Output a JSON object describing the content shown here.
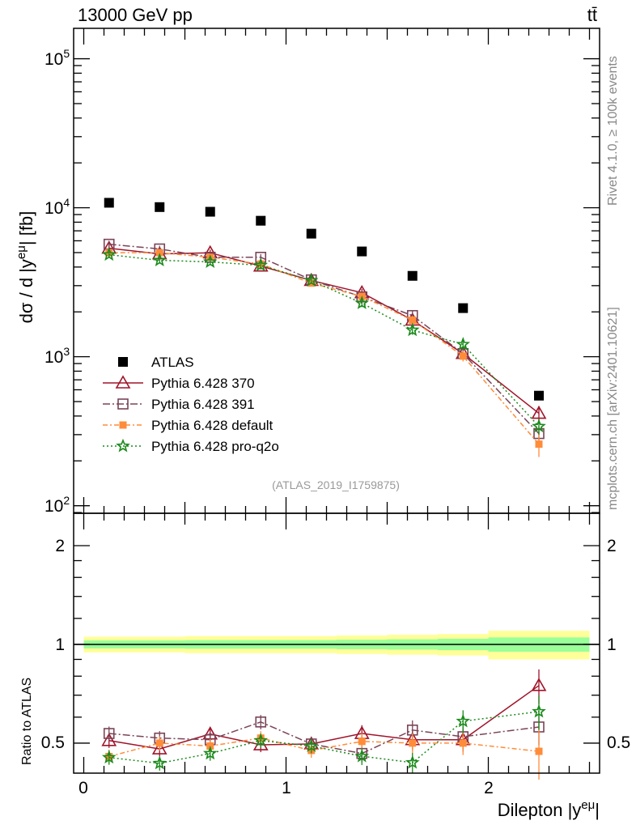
{
  "header": {
    "energy_label": "13000 GeV pp",
    "process_label": "tt̄"
  },
  "side_labels": {
    "rivet": "Rivet 4.1.0, ≥ 100k events",
    "mcplots": "mcplots.cern.ch [arXiv:2401.10621]"
  },
  "analysis_label": "(ATLAS_2019_I1759875)",
  "chart_data": [
    {
      "type": "scatter",
      "panel": "main",
      "ylabel_main": "dσ / d |y",
      "ylabel_sup": "eμ",
      "ylabel_end": "| [fb]",
      "yscale": "log",
      "ylim": [
        89,
        160000
      ],
      "xlim": [
        -0.05,
        2.55
      ],
      "ytick_labels": [
        {
          "base": "10",
          "exp": "2"
        },
        {
          "base": "10",
          "exp": "3"
        },
        {
          "base": "10",
          "exp": "4"
        },
        {
          "base": "10",
          "exp": "5"
        }
      ],
      "bin_edges": [
        0,
        0.25,
        0.5,
        0.75,
        1.0,
        1.25,
        1.5,
        1.75,
        2.0,
        2.5
      ],
      "x": [
        0.125,
        0.375,
        0.625,
        0.875,
        1.125,
        1.375,
        1.625,
        1.875,
        2.25
      ],
      "legend_position": "bottom-left",
      "series": [
        {
          "name": "ATLAS",
          "color": "#000000",
          "marker": "filled-square",
          "line": "none",
          "values": [
            10800,
            10100,
            9400,
            8180,
            6700,
            5090,
            3490,
            2120,
            548
          ],
          "rel_err": [
            0.02,
            0.02,
            0.02,
            0.02,
            0.02,
            0.02,
            0.03,
            0.03,
            0.05
          ]
        },
        {
          "name": "Pythia 6.428 370",
          "color": "#a0142a",
          "marker": "open-triangle",
          "line": "solid",
          "values": [
            5350,
            4900,
            4980,
            4060,
            3250,
            2690,
            1760,
            1050,
            417
          ],
          "rel_err": [
            0.05,
            0.05,
            0.05,
            0.05,
            0.05,
            0.06,
            0.07,
            0.08,
            0.12
          ]
        },
        {
          "name": "Pythia 6.428 391",
          "color": "#7a4458",
          "marker": "open-square",
          "line": "dashdot",
          "values": [
            5690,
            5290,
            4650,
            4650,
            3280,
            2520,
            1890,
            1050,
            305
          ],
          "rel_err": [
            0.05,
            0.05,
            0.05,
            0.05,
            0.05,
            0.06,
            0.07,
            0.08,
            0.12
          ]
        },
        {
          "name": "Pythia 6.428 default",
          "color": "#ff8c3a",
          "marker": "filled-square",
          "line": "dashdot2",
          "values": [
            4990,
            4990,
            4650,
            4190,
            3120,
            2540,
            1760,
            1010,
            259
          ],
          "rel_err": [
            0.05,
            0.05,
            0.05,
            0.05,
            0.05,
            0.06,
            0.07,
            0.08,
            0.18
          ]
        },
        {
          "name": "Pythia 6.428 pro-q2o",
          "color": "#1a8a1a",
          "marker": "star",
          "line": "dotted",
          "values": [
            4840,
            4440,
            4330,
            4110,
            3250,
            2290,
            1510,
            1210,
            341
          ],
          "rel_err": [
            0.05,
            0.05,
            0.05,
            0.05,
            0.05,
            0.06,
            0.07,
            0.08,
            0.12
          ]
        }
      ]
    },
    {
      "type": "scatter",
      "panel": "ratio",
      "ylabel": "Ratio to ATLAS",
      "xlabel_main": "Dilepton |y",
      "xlabel_sup": "eμ",
      "xlabel_end": "|",
      "yscale": "log",
      "ylim": [
        0.405,
        2.51
      ],
      "xlim": [
        -0.05,
        2.55
      ],
      "ytick_labels": [
        "0.5",
        "1",
        "2"
      ],
      "xtick_labels": [
        "0",
        "1",
        "2"
      ],
      "band_green": [
        0.028,
        0.028,
        0.03,
        0.03,
        0.03,
        0.033,
        0.036,
        0.04,
        0.05
      ],
      "band_yellow": [
        0.055,
        0.055,
        0.06,
        0.06,
        0.06,
        0.065,
        0.07,
        0.075,
        0.1
      ],
      "series": [
        {
          "name": "Pythia 6.428 370",
          "values": [
            0.509,
            0.48,
            0.533,
            0.494,
            0.497,
            0.535,
            0.512,
            0.512,
            0.749
          ]
        },
        {
          "name": "Pythia 6.428 391",
          "values": [
            0.535,
            0.518,
            0.512,
            0.58,
            0.497,
            0.465,
            0.548,
            0.523,
            0.56
          ]
        },
        {
          "name": "Pythia 6.428 default",
          "values": [
            0.455,
            0.5,
            0.49,
            0.518,
            0.475,
            0.506,
            0.5,
            0.5,
            0.472
          ]
        },
        {
          "name": "Pythia 6.428 pro-q2o",
          "values": [
            0.452,
            0.434,
            0.465,
            0.509,
            0.49,
            0.456,
            0.436,
            0.583,
            0.624
          ]
        }
      ]
    }
  ]
}
